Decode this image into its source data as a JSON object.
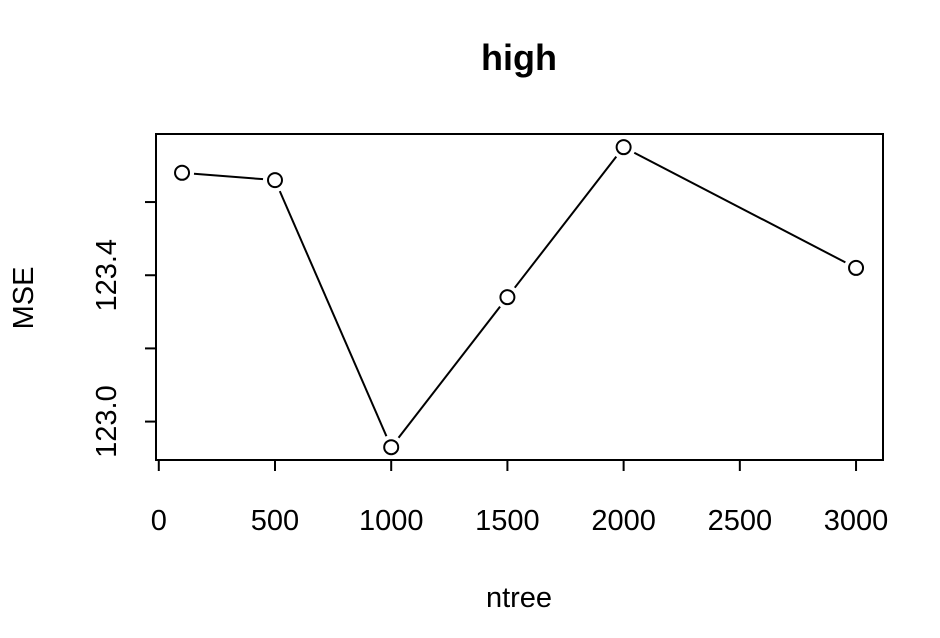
{
  "chart_data": {
    "type": "line",
    "title": "high",
    "xlabel": "ntree",
    "ylabel": "MSE",
    "x": [
      100,
      500,
      1000,
      1500,
      2000,
      3000
    ],
    "values": [
      123.68,
      123.66,
      122.93,
      123.34,
      123.75,
      123.42
    ],
    "xticks": [
      0,
      500,
      1000,
      1500,
      2000,
      2500,
      3000
    ],
    "xtick_labels": [
      "0",
      "500",
      "1000",
      "1500",
      "2000",
      "2500",
      "3000"
    ],
    "yticks": [
      123.0,
      123.2,
      123.4,
      123.6
    ],
    "ytick_labels": [
      "123.0",
      "",
      "123.4",
      ""
    ],
    "xlim": [
      -12,
      3116
    ],
    "ylim": [
      122.895,
      123.786
    ],
    "grid": false,
    "marker": "open-circle"
  }
}
